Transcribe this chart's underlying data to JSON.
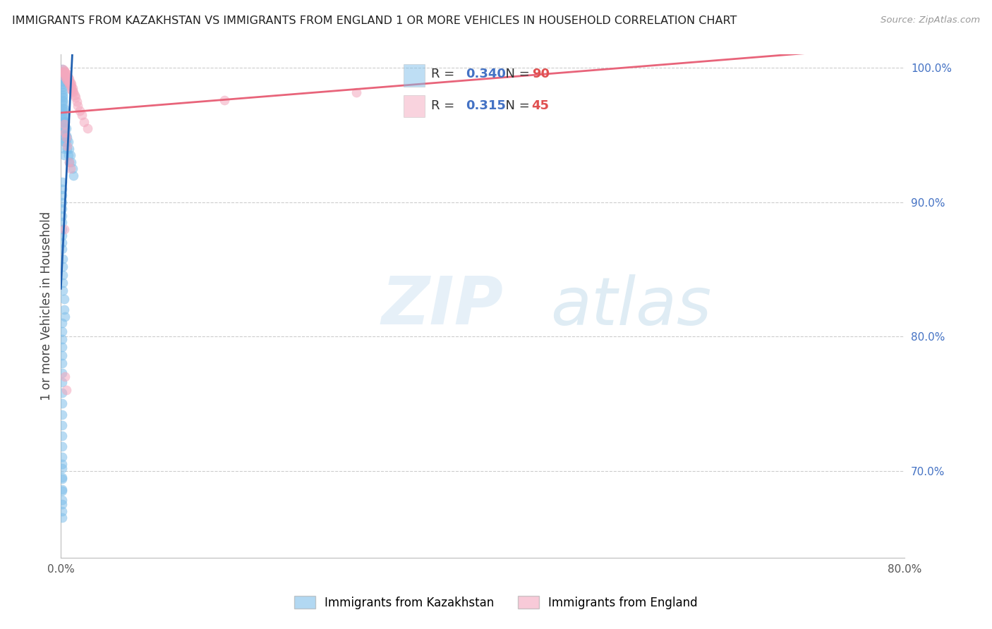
{
  "title": "IMMIGRANTS FROM KAZAKHSTAN VS IMMIGRANTS FROM ENGLAND 1 OR MORE VEHICLES IN HOUSEHOLD CORRELATION CHART",
  "source": "Source: ZipAtlas.com",
  "ylabel": "1 or more Vehicles in Household",
  "xlim": [
    0.0,
    0.8
  ],
  "ylim": [
    0.635,
    1.01
  ],
  "xticks": [
    0.0,
    0.1,
    0.2,
    0.3,
    0.4,
    0.5,
    0.6,
    0.7,
    0.8
  ],
  "xticklabels": [
    "0.0%",
    "",
    "",
    "",
    "",
    "",
    "",
    "",
    "80.0%"
  ],
  "yticks_right": [
    1.0,
    0.9,
    0.8,
    0.7
  ],
  "ytick_labels_right": [
    "100.0%",
    "90.0%",
    "80.0%",
    "70.0%"
  ],
  "legend_label_blue": "Immigrants from Kazakhstan",
  "legend_label_pink": "Immigrants from England",
  "R_blue": 0.34,
  "N_blue": 90,
  "R_pink": 0.315,
  "N_pink": 45,
  "color_blue": "#7fbfea",
  "color_pink": "#f4a8be",
  "trendline_blue": "#2060b0",
  "trendline_pink": "#e8647a",
  "watermark_zip": "ZIP",
  "watermark_atlas": "atlas",
  "blue_x": [
    0.001,
    0.001,
    0.001,
    0.002,
    0.002,
    0.002,
    0.002,
    0.002,
    0.002,
    0.002,
    0.002,
    0.002,
    0.002,
    0.002,
    0.002,
    0.002,
    0.002,
    0.002,
    0.002,
    0.002,
    0.002,
    0.003,
    0.003,
    0.003,
    0.003,
    0.003,
    0.003,
    0.003,
    0.003,
    0.004,
    0.004,
    0.004,
    0.004,
    0.005,
    0.005,
    0.005,
    0.006,
    0.006,
    0.007,
    0.007,
    0.008,
    0.008,
    0.009,
    0.01,
    0.011,
    0.012,
    0.001,
    0.001,
    0.001,
    0.001,
    0.001,
    0.001,
    0.001,
    0.001,
    0.001,
    0.001,
    0.001,
    0.002,
    0.002,
    0.002,
    0.002,
    0.002,
    0.003,
    0.003,
    0.004,
    0.001,
    0.001,
    0.001,
    0.001,
    0.001,
    0.001,
    0.001,
    0.001,
    0.001,
    0.001,
    0.001,
    0.001,
    0.001,
    0.001,
    0.001,
    0.001,
    0.001,
    0.001,
    0.001,
    0.001,
    0.001,
    0.001,
    0.001,
    0.001,
    0.001
  ],
  "blue_y": [
    0.999,
    0.997,
    0.995,
    0.993,
    0.991,
    0.99,
    0.988,
    0.986,
    0.984,
    0.982,
    0.98,
    0.978,
    0.976,
    0.975,
    0.973,
    0.97,
    0.968,
    0.966,
    0.964,
    0.962,
    0.96,
    0.97,
    0.965,
    0.96,
    0.955,
    0.95,
    0.945,
    0.94,
    0.935,
    0.96,
    0.955,
    0.95,
    0.945,
    0.955,
    0.95,
    0.945,
    0.948,
    0.94,
    0.945,
    0.935,
    0.94,
    0.93,
    0.935,
    0.93,
    0.925,
    0.92,
    0.915,
    0.91,
    0.905,
    0.9,
    0.895,
    0.89,
    0.885,
    0.88,
    0.875,
    0.87,
    0.865,
    0.858,
    0.852,
    0.846,
    0.84,
    0.834,
    0.828,
    0.82,
    0.815,
    0.81,
    0.804,
    0.798,
    0.792,
    0.786,
    0.78,
    0.773,
    0.766,
    0.758,
    0.75,
    0.742,
    0.734,
    0.726,
    0.718,
    0.71,
    0.702,
    0.694,
    0.686,
    0.678,
    0.67,
    0.705,
    0.695,
    0.685,
    0.675,
    0.665
  ],
  "pink_x": [
    0.002,
    0.002,
    0.003,
    0.003,
    0.003,
    0.004,
    0.004,
    0.005,
    0.005,
    0.005,
    0.006,
    0.006,
    0.006,
    0.007,
    0.007,
    0.008,
    0.008,
    0.008,
    0.009,
    0.009,
    0.01,
    0.01,
    0.01,
    0.011,
    0.011,
    0.012,
    0.013,
    0.014,
    0.015,
    0.016,
    0.018,
    0.02,
    0.022,
    0.025,
    0.003,
    0.004,
    0.005,
    0.006,
    0.008,
    0.009,
    0.155,
    0.28,
    0.003,
    0.004,
    0.005
  ],
  "pink_y": [
    0.999,
    0.997,
    0.998,
    0.996,
    0.994,
    0.997,
    0.995,
    0.996,
    0.994,
    0.992,
    0.995,
    0.993,
    0.991,
    0.993,
    0.99,
    0.992,
    0.99,
    0.988,
    0.989,
    0.987,
    0.988,
    0.986,
    0.984,
    0.985,
    0.983,
    0.982,
    0.98,
    0.978,
    0.975,
    0.972,
    0.968,
    0.965,
    0.96,
    0.955,
    0.958,
    0.952,
    0.948,
    0.942,
    0.93,
    0.925,
    0.976,
    0.982,
    0.88,
    0.77,
    0.76
  ]
}
